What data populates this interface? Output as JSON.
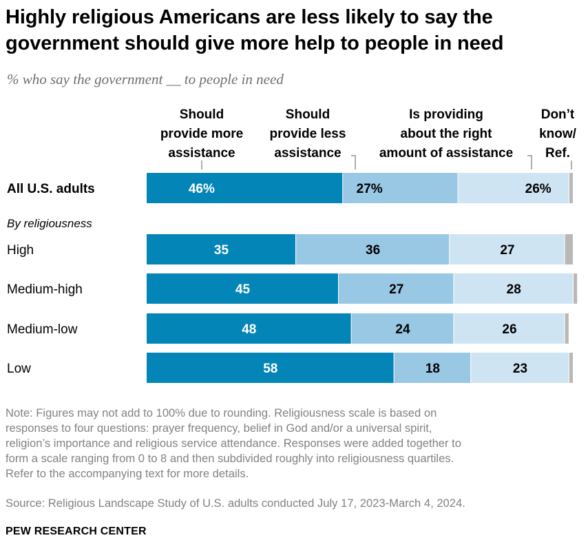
{
  "title": "Highly religious Americans are less likely to say the government should give more help to people in need",
  "subtitle": "% who say the government __ to people in need",
  "chart_data": {
    "type": "bar",
    "orientation": "horizontal",
    "stacked": true,
    "xlim": [
      0,
      100
    ],
    "categories": [
      "All U.S. adults",
      "High",
      "Medium-high",
      "Medium-low",
      "Low"
    ],
    "group_label": "By religiousness",
    "series": [
      {
        "name": "Should provide more assistance",
        "header_lines": [
          "Should",
          "provide more",
          "assistance"
        ],
        "color": "#0485b7",
        "label_color": "#ffffff",
        "values": [
          46,
          35,
          45,
          48,
          58
        ],
        "labels": [
          "46%",
          "35",
          "45",
          "48",
          "58"
        ]
      },
      {
        "name": "Should provide less assistance",
        "header_lines": [
          "Should",
          "provide less",
          "assistance"
        ],
        "color": "#99c8e4",
        "label_color": "#000000",
        "values": [
          27,
          36,
          27,
          24,
          18
        ],
        "labels": [
          "27%",
          "36",
          "27",
          "24",
          "18"
        ]
      },
      {
        "name": "Is providing about the right amount of assistance",
        "header_lines": [
          "Is providing",
          "about the right",
          "amount of assistance"
        ],
        "color": "#cfe4f2",
        "label_color": "#000000",
        "values": [
          26,
          27,
          28,
          26,
          23
        ],
        "labels": [
          "26%",
          "27",
          "28",
          "26",
          "23"
        ]
      },
      {
        "name": "Don't know/Ref.",
        "header_lines": [
          "Don’t",
          "know/",
          "Ref."
        ],
        "color": "#b8b8b8",
        "label_color": "#000000",
        "values": [
          1,
          2,
          1,
          1,
          1
        ],
        "labels": [
          "",
          "",
          "",
          "",
          ""
        ]
      }
    ]
  },
  "note_lines": [
    "Note: Figures may not add to 100% due to rounding. Religiousness scale is based on",
    "responses to four questions: prayer frequency, belief in God and/or a universal spirit,",
    "religion’s importance and religious service attendance. Responses were added together to",
    "form a scale ranging from 0 to 8 and then subdivided roughly into religiousness quartiles.",
    "Refer to the accompanying text for more details."
  ],
  "source": "Source: Religious Landscape Study of U.S. adults conducted July 17, 2023-March 4, 2024.",
  "brand": "PEW RESEARCH CENTER"
}
